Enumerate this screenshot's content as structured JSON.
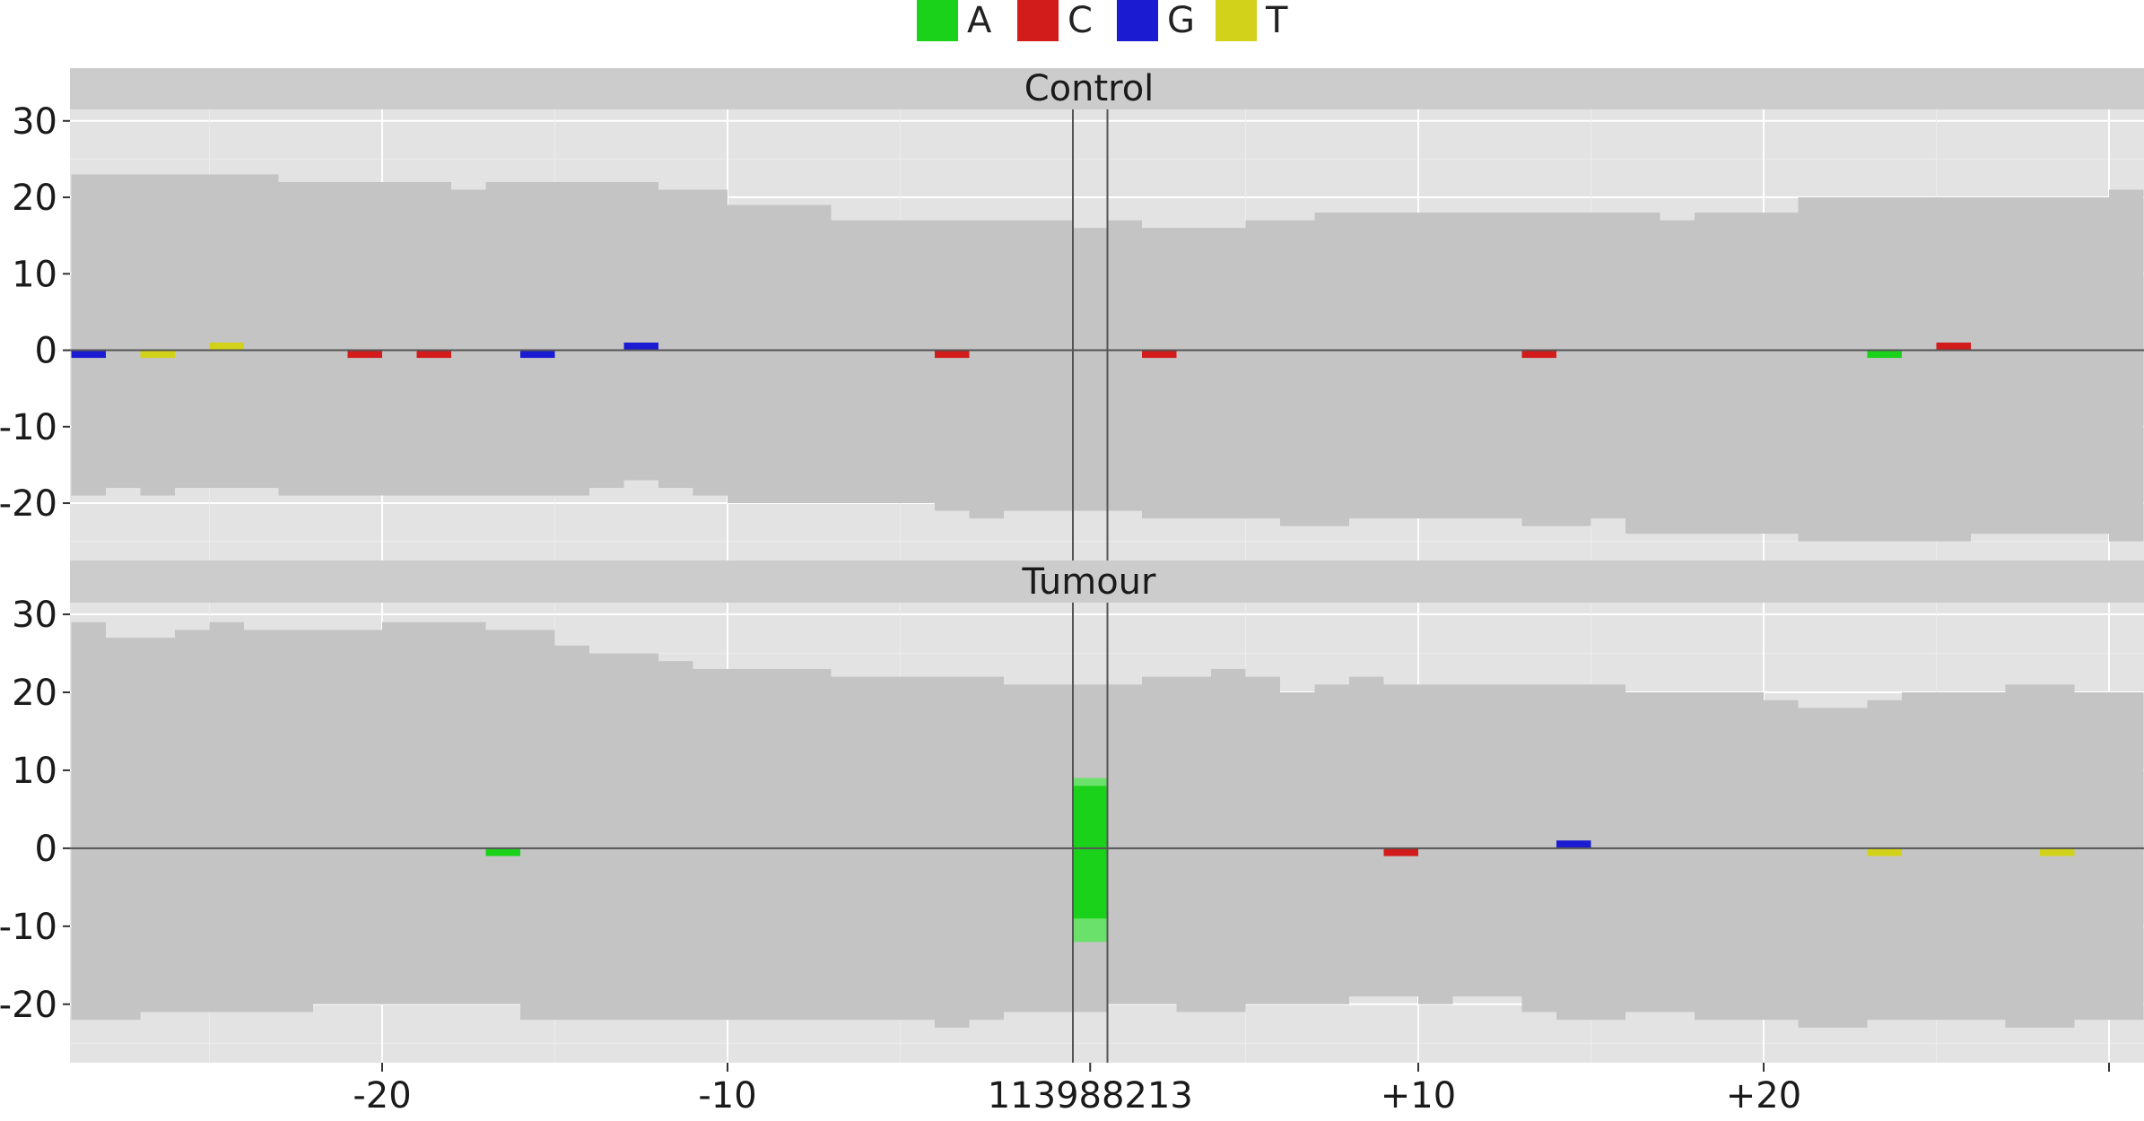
{
  "chart_data": {
    "type": "bar",
    "subtype": "pileup-coverage",
    "center_label": "113988213",
    "x_tick_labels": [
      "-20",
      "-10",
      "113988213",
      "+10",
      "+20"
    ],
    "x_ticks_offset": [
      -20,
      -10,
      0,
      10,
      20
    ],
    "x_range": [
      -29,
      30
    ],
    "y_ticks": [
      30,
      20,
      10,
      0,
      -10,
      -20
    ],
    "y_tick_labels": [
      "30",
      "20",
      "10",
      "0",
      "-10",
      "-20"
    ],
    "y_range": [
      -27.5,
      31.5
    ],
    "grid": true,
    "legend_position": "top-center",
    "legend": [
      {
        "label": "A",
        "color": "#1bd21b"
      },
      {
        "label": "C",
        "color": "#d21b1b"
      },
      {
        "label": "G",
        "color": "#1b1bd2"
      },
      {
        "label": "T",
        "color": "#d2d21b"
      }
    ],
    "colors": {
      "panel_bg": "#e3e3e3",
      "strip_bg": "#cccccc",
      "coverage": "#c4c4c4",
      "grid_major": "#ffffff",
      "axis_line": "#555555"
    },
    "panels": [
      {
        "title": "Control",
        "positions_start": -29,
        "forward_coverage": [
          23,
          23,
          23,
          23,
          23,
          23,
          22,
          22,
          22,
          22,
          22,
          21,
          22,
          22,
          22,
          22,
          22,
          21,
          21,
          19,
          19,
          19,
          17,
          17,
          17,
          17,
          17,
          17,
          17,
          16,
          17,
          16,
          16,
          16,
          17,
          17,
          18,
          18,
          18,
          18,
          18,
          18,
          18,
          18,
          18,
          18,
          17,
          18,
          18,
          18,
          20,
          20,
          20,
          20,
          20,
          20,
          20,
          20,
          20,
          21
        ],
        "reverse_coverage": [
          19,
          18,
          19,
          18,
          18,
          18,
          19,
          19,
          19,
          19,
          19,
          19,
          19,
          19,
          19,
          18,
          17,
          18,
          19,
          20,
          20,
          20,
          20,
          20,
          20,
          21,
          22,
          21,
          21,
          21,
          21,
          22,
          22,
          22,
          22,
          23,
          23,
          22,
          22,
          22,
          22,
          22,
          23,
          23,
          22,
          24,
          24,
          24,
          24,
          24,
          25,
          25,
          25,
          25,
          25,
          24,
          24,
          24,
          24,
          25
        ],
        "mismatches": [
          {
            "pos": -29,
            "base": "G",
            "fwd": 0,
            "rev": 1
          },
          {
            "pos": -27,
            "base": "T",
            "fwd": 0,
            "rev": 1
          },
          {
            "pos": -25,
            "base": "T",
            "fwd": 1,
            "rev": 0
          },
          {
            "pos": -21,
            "base": "C",
            "fwd": 0,
            "rev": 1
          },
          {
            "pos": -19,
            "base": "C",
            "fwd": 0,
            "rev": 1
          },
          {
            "pos": -16,
            "base": "G",
            "fwd": 0,
            "rev": 1
          },
          {
            "pos": -13,
            "base": "G",
            "fwd": 1,
            "rev": 0
          },
          {
            "pos": -4,
            "base": "C",
            "fwd": 0,
            "rev": 1
          },
          {
            "pos": 2,
            "base": "C",
            "fwd": 0,
            "rev": 1
          },
          {
            "pos": 13,
            "base": "C",
            "fwd": 0,
            "rev": 1
          },
          {
            "pos": 23,
            "base": "A",
            "fwd": 0,
            "rev": 1
          },
          {
            "pos": 25,
            "base": "C",
            "fwd": 1,
            "rev": 0
          }
        ]
      },
      {
        "title": "Tumour",
        "positions_start": -29,
        "forward_coverage": [
          29,
          27,
          27,
          28,
          29,
          28,
          28,
          28,
          28,
          29,
          29,
          29,
          28,
          28,
          26,
          25,
          25,
          24,
          23,
          23,
          23,
          23,
          22,
          22,
          22,
          22,
          22,
          21,
          21,
          21,
          21,
          22,
          22,
          23,
          22,
          20,
          21,
          22,
          21,
          21,
          21,
          21,
          21,
          21,
          21,
          20,
          20,
          20,
          20,
          19,
          18,
          18,
          19,
          20,
          20,
          20,
          21,
          21,
          20,
          20
        ],
        "reverse_coverage": [
          22,
          22,
          21,
          21,
          21,
          21,
          21,
          20,
          20,
          20,
          20,
          20,
          20,
          22,
          22,
          22,
          22,
          22,
          22,
          22,
          22,
          22,
          22,
          22,
          22,
          23,
          22,
          21,
          21,
          21,
          20,
          20,
          21,
          21,
          20,
          20,
          20,
          19,
          19,
          20,
          19,
          19,
          21,
          22,
          22,
          21,
          21,
          22,
          22,
          22,
          23,
          23,
          22,
          22,
          22,
          22,
          23,
          23,
          22,
          22
        ],
        "mismatches": [
          {
            "pos": -17,
            "base": "A",
            "fwd": 0,
            "rev": 1
          },
          {
            "pos": 0,
            "base": "A",
            "fwd": 9,
            "rev": 12
          },
          {
            "pos": 9,
            "base": "C",
            "fwd": 0,
            "rev": 1
          },
          {
            "pos": 14,
            "base": "G",
            "fwd": 1,
            "rev": 0
          },
          {
            "pos": 23,
            "base": "T",
            "fwd": 0,
            "rev": 1
          },
          {
            "pos": 28,
            "base": "T",
            "fwd": 0,
            "rev": 1
          }
        ]
      }
    ]
  }
}
